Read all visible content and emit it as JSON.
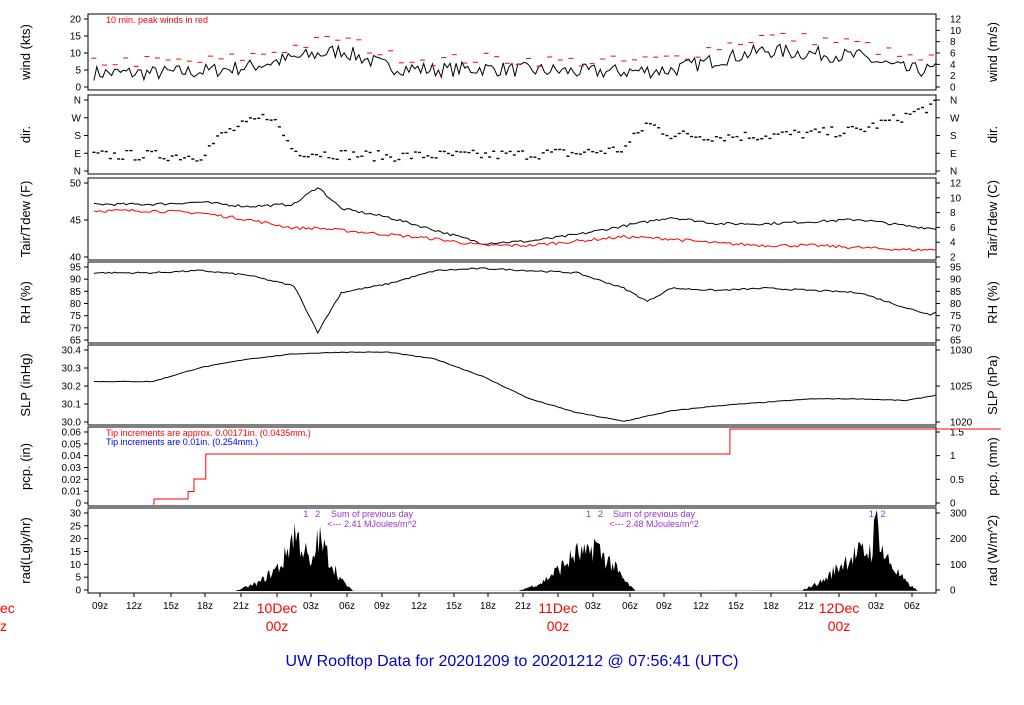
{
  "colors": {
    "axis": "#000000",
    "peak": "#ff0000",
    "dew": "#ff0000",
    "tip_note_1": "#ff0000",
    "tip_note_2": "#0000ff",
    "annotation": "#9b30d0",
    "date_label": "#ff0000",
    "footer": "#0000cc"
  },
  "footer_title": "UW Rooftop Data for 20201209  to  20201212 @ 07:56:41  (UTC)",
  "time_axis": {
    "tick_labels": [
      "09z",
      "12z",
      "15z",
      "18z",
      "21z",
      "03z",
      "06z",
      "09z",
      "12z",
      "15z",
      "18z",
      "21z",
      "03z",
      "06z",
      "09z",
      "12z",
      "15z",
      "18z",
      "21z",
      "03z",
      "06z"
    ],
    "date_labels": [
      {
        "day": "10Dec",
        "hour": "00z"
      },
      {
        "day": "11Dec",
        "hour": "00z"
      },
      {
        "day": "12Dec",
        "hour": "00z"
      }
    ],
    "cut_label": {
      "day": "ec",
      "hour": "z"
    }
  },
  "chart_data": [
    {
      "type": "line",
      "name": "wind",
      "ylabel_left": "wind (kts)",
      "ylabel_right": "wind (m/s)",
      "annotation": "10 min. peak winds in red",
      "ylim": [
        0,
        24
      ],
      "left_ticks": [
        "0",
        "5",
        "10",
        "15",
        "20"
      ],
      "right_ticks": [
        "0",
        "2",
        "4",
        "6",
        "8",
        "10",
        "12"
      ],
      "x_hours": [
        0,
        4,
        8,
        12,
        16,
        20,
        24,
        28,
        32,
        36,
        40,
        44,
        48,
        52,
        56,
        60,
        64,
        68,
        72
      ],
      "y": [
        5,
        5.5,
        7,
        10,
        12.5,
        7,
        6,
        6.5,
        6,
        5.5,
        5.5,
        6,
        9.5,
        12.5,
        11.5,
        10.5,
        6,
        6,
        6
      ],
      "peak_y": [
        8,
        8,
        9.5,
        13,
        16,
        10,
        8.5,
        9,
        8.5,
        8,
        8,
        9,
        13,
        16.5,
        15.5,
        14,
        9,
        8.5,
        8.5
      ]
    },
    {
      "type": "scatter",
      "name": "dir",
      "ylabel_left": "dir.",
      "ylabel_right": "dir.",
      "left_ticks": [
        "N",
        "E",
        "S",
        "W",
        "N"
      ],
      "right_ticks": [
        "N",
        "E",
        "S",
        "W",
        "N"
      ],
      "ylim": [
        0,
        360
      ],
      "x_hours": [
        0,
        4,
        6,
        8,
        10,
        12,
        14,
        16,
        18,
        20,
        24,
        28,
        32,
        34,
        36,
        38,
        40,
        42,
        44,
        48,
        52,
        56,
        60,
        64,
        66,
        68,
        70,
        72
      ],
      "y": [
        80,
        75,
        185,
        230,
        275,
        100,
        90,
        85,
        80,
        75,
        80,
        80,
        85,
        90,
        90,
        100,
        110,
        235,
        180,
        170,
        175,
        185,
        200,
        270,
        315,
        340,
        350,
        90
      ]
    },
    {
      "type": "line",
      "name": "temp",
      "ylabel_left": "Tair/Tdew (F)",
      "ylabel_right": "Tair/Tdew (C)",
      "left_ticks": [
        "40",
        "45",
        "50"
      ],
      "right_ticks": [
        "2",
        "4",
        "6",
        "8",
        "10",
        "12"
      ],
      "ylim": [
        35.6,
        53.6
      ],
      "x_hours": [
        0,
        4,
        8,
        12,
        14,
        16,
        20,
        24,
        28,
        32,
        36,
        40,
        44,
        48,
        52,
        56,
        60,
        64,
        68,
        72
      ],
      "series": [
        {
          "name": "Tair",
          "y": [
            48,
            48.5,
            47.5,
            48,
            52,
            47,
            45,
            42,
            39,
            39.5,
            41,
            43,
            45,
            43.5,
            43.5,
            44,
            44.5,
            43,
            42,
            39.5
          ]
        },
        {
          "name": "Tdew",
          "y": [
            46.5,
            46,
            44.5,
            42.5,
            42.5,
            42,
            41,
            40,
            38.5,
            38.5,
            39.5,
            40.5,
            40,
            39,
            38.5,
            38.5,
            38,
            37.5,
            37.5,
            37.5
          ]
        }
      ]
    },
    {
      "type": "line",
      "name": "rh",
      "ylabel_left": "RH (%)",
      "ylabel_right": "RH (%)",
      "left_ticks": [
        "65",
        "70",
        "75",
        "80",
        "85",
        "90",
        "95"
      ],
      "right_ticks": [
        "65",
        "70",
        "75",
        "80",
        "85",
        "90",
        "95"
      ],
      "ylim": [
        62,
        97
      ],
      "x_hours": [
        0,
        4,
        8,
        12,
        14,
        16,
        20,
        24,
        28,
        32,
        36,
        40,
        42,
        44,
        48,
        52,
        56,
        60,
        64,
        66,
        68,
        72
      ],
      "y": [
        93,
        94,
        92,
        87,
        66,
        84,
        88,
        94,
        95,
        94,
        93,
        86,
        80,
        86,
        85,
        86,
        85,
        84,
        77,
        74,
        80,
        91
      ]
    },
    {
      "type": "line",
      "name": "slp",
      "ylabel_left": "SLP (inHg)",
      "ylabel_right": "SLP (hPa)",
      "left_ticks": [
        "30.0",
        "30.1",
        "30.2",
        "30.3",
        "30.4"
      ],
      "right_ticks": [
        "1020",
        "1025",
        "1030"
      ],
      "ylim": [
        29.98,
        30.42
      ],
      "x_hours": [
        0,
        4,
        8,
        12,
        16,
        20,
        24,
        28,
        32,
        36,
        40,
        44,
        48,
        52,
        56,
        60,
        64,
        68,
        72
      ],
      "y": [
        30.22,
        30.3,
        30.35,
        30.38,
        30.39,
        30.39,
        30.35,
        30.25,
        30.12,
        30.04,
        29.99,
        30.05,
        30.08,
        30.1,
        30.12,
        30.12,
        30.11,
        30.16,
        30.21
      ]
    },
    {
      "type": "line",
      "name": "pcp",
      "ylabel_left": "pcp. (in)",
      "ylabel_right": "pcp. (mm)",
      "note_1": "Tip increments are approx. 0.00171in. (0.0435mm.)",
      "note_2": "Tip increments are 0.01in. (0.254mm.)",
      "left_ticks": [
        "0",
        "0.01",
        "0.02",
        "0.03",
        "0.04",
        "0.05",
        "0.06"
      ],
      "right_ticks": [
        "0",
        "0.5",
        "1",
        "1.5"
      ],
      "ylim": [
        0,
        0.06
      ],
      "x_hours": [
        0,
        0.1,
        3,
        3.5,
        4.5,
        48,
        49,
        72
      ],
      "y": [
        0,
        0.004,
        0.01,
        0.02,
        0.04,
        0.04,
        0.06,
        0.06
      ]
    },
    {
      "type": "area",
      "name": "rad",
      "ylabel_left": "rad(Lgly/hr)",
      "ylabel_right": "rad (W/m^2)",
      "left_ticks": [
        "0",
        "5",
        "10",
        "15",
        "20",
        "25",
        "30"
      ],
      "right_ticks": [
        "0",
        "100",
        "200",
        "300"
      ],
      "ylim": [
        0,
        30
      ],
      "marks": [
        "1",
        "2",
        "1",
        "2",
        "1",
        "2"
      ],
      "day_sums": [
        {
          "line1": "Sum of previous day",
          "line2": "<--- 2.41 MJoules/m^2"
        },
        {
          "line1": "Sum of previous day",
          "line2": "<--- 2.48 MJoules/m^2"
        }
      ],
      "x_hours": [
        7,
        9,
        11,
        12,
        13,
        13.5,
        14,
        15,
        16,
        17,
        31,
        33,
        35,
        36,
        37,
        37.5,
        38,
        39,
        40,
        41,
        55,
        57,
        59,
        60,
        61,
        61.5,
        62,
        63,
        64,
        65
      ],
      "y": [
        0,
        3,
        10,
        22,
        14,
        8,
        20,
        12,
        4,
        0,
        0,
        3,
        10,
        14,
        13,
        18,
        14,
        10,
        4,
        0,
        0,
        4,
        12,
        14,
        15,
        27,
        14,
        8,
        3,
        0
      ]
    }
  ]
}
